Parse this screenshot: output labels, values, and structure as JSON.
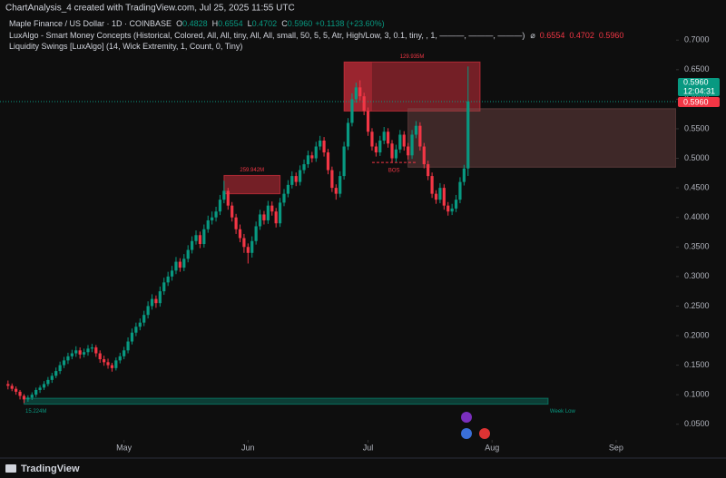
{
  "header": "ChartAnalysis_4 created with TradingView.com, Jul 25, 2025 11:55 UTC",
  "footer": "TradingView",
  "chart_data": {
    "type": "candlestick",
    "title": "Maple Finance / US Dollar · 1D · COINBASE",
    "legend_values": [
      {
        "key": "O",
        "text": "0.4828"
      },
      {
        "key": "H",
        "text": "0.6554"
      },
      {
        "key": "L",
        "text": "0.4702"
      },
      {
        "key": "C",
        "text": "0.5960"
      }
    ],
    "change": "+0.1138 (+23.60%)",
    "indicators": [
      {
        "text": "LuxAlgo - Smart Money Concepts (Historical, Colored, All, All, tiny, All, All, small, 50, 5, 5, Atr, High/Low, 3, 0.1, tiny, , 1, ———, ———, ———)",
        "symbol": "⌀",
        "values": [
          "0.6554",
          "0.4702",
          "0.5960"
        ]
      },
      {
        "text": "Liquidity Swings [LuxAlgo] (14, Wick Extremity, 1, Count, 0, Tiny)"
      }
    ],
    "up_color": "#089981",
    "down_color": "#f23645",
    "ohlc": [
      [
        0.118,
        0.124,
        0.109,
        0.115
      ],
      [
        0.115,
        0.119,
        0.106,
        0.11
      ],
      [
        0.11,
        0.114,
        0.1,
        0.105
      ],
      [
        0.105,
        0.108,
        0.092,
        0.098
      ],
      [
        0.098,
        0.101,
        0.086,
        0.092
      ],
      [
        0.092,
        0.099,
        0.088,
        0.095
      ],
      [
        0.095,
        0.104,
        0.091,
        0.1
      ],
      [
        0.1,
        0.112,
        0.096,
        0.108
      ],
      [
        0.108,
        0.116,
        0.103,
        0.112
      ],
      [
        0.112,
        0.123,
        0.108,
        0.118
      ],
      [
        0.118,
        0.13,
        0.114,
        0.125
      ],
      [
        0.125,
        0.137,
        0.12,
        0.132
      ],
      [
        0.132,
        0.146,
        0.128,
        0.14
      ],
      [
        0.14,
        0.156,
        0.135,
        0.15
      ],
      [
        0.15,
        0.164,
        0.145,
        0.158
      ],
      [
        0.158,
        0.171,
        0.152,
        0.165
      ],
      [
        0.165,
        0.176,
        0.16,
        0.17
      ],
      [
        0.17,
        0.182,
        0.164,
        0.175
      ],
      [
        0.175,
        0.18,
        0.161,
        0.168
      ],
      [
        0.168,
        0.178,
        0.163,
        0.172
      ],
      [
        0.172,
        0.184,
        0.166,
        0.178
      ],
      [
        0.178,
        0.186,
        0.172,
        0.18
      ],
      [
        0.18,
        0.184,
        0.164,
        0.17
      ],
      [
        0.17,
        0.175,
        0.154,
        0.16
      ],
      [
        0.16,
        0.166,
        0.149,
        0.155
      ],
      [
        0.155,
        0.161,
        0.144,
        0.15
      ],
      [
        0.15,
        0.154,
        0.139,
        0.145
      ],
      [
        0.145,
        0.163,
        0.141,
        0.158
      ],
      [
        0.158,
        0.171,
        0.153,
        0.165
      ],
      [
        0.165,
        0.181,
        0.16,
        0.175
      ],
      [
        0.175,
        0.197,
        0.17,
        0.19
      ],
      [
        0.19,
        0.212,
        0.185,
        0.205
      ],
      [
        0.205,
        0.222,
        0.199,
        0.215
      ],
      [
        0.215,
        0.229,
        0.209,
        0.222
      ],
      [
        0.222,
        0.242,
        0.216,
        0.235
      ],
      [
        0.235,
        0.258,
        0.229,
        0.25
      ],
      [
        0.25,
        0.27,
        0.244,
        0.262
      ],
      [
        0.262,
        0.268,
        0.247,
        0.255
      ],
      [
        0.255,
        0.283,
        0.249,
        0.275
      ],
      [
        0.275,
        0.298,
        0.269,
        0.29
      ],
      [
        0.29,
        0.308,
        0.284,
        0.3
      ],
      [
        0.3,
        0.318,
        0.293,
        0.31
      ],
      [
        0.31,
        0.333,
        0.304,
        0.325
      ],
      [
        0.325,
        0.331,
        0.308,
        0.315
      ],
      [
        0.315,
        0.338,
        0.309,
        0.33
      ],
      [
        0.33,
        0.353,
        0.324,
        0.345
      ],
      [
        0.345,
        0.368,
        0.339,
        0.36
      ],
      [
        0.36,
        0.378,
        0.354,
        0.37
      ],
      [
        0.37,
        0.376,
        0.348,
        0.355
      ],
      [
        0.355,
        0.388,
        0.349,
        0.38
      ],
      [
        0.38,
        0.403,
        0.374,
        0.395
      ],
      [
        0.395,
        0.41,
        0.388,
        0.4
      ],
      [
        0.4,
        0.418,
        0.393,
        0.41
      ],
      [
        0.41,
        0.438,
        0.404,
        0.43
      ],
      [
        0.43,
        0.462,
        0.424,
        0.445
      ],
      [
        0.445,
        0.45,
        0.413,
        0.42
      ],
      [
        0.42,
        0.426,
        0.393,
        0.4
      ],
      [
        0.4,
        0.406,
        0.372,
        0.38
      ],
      [
        0.38,
        0.388,
        0.358,
        0.365
      ],
      [
        0.365,
        0.372,
        0.34,
        0.35
      ],
      [
        0.35,
        0.356,
        0.322,
        0.34
      ],
      [
        0.34,
        0.368,
        0.332,
        0.36
      ],
      [
        0.36,
        0.393,
        0.354,
        0.385
      ],
      [
        0.385,
        0.413,
        0.379,
        0.405
      ],
      [
        0.405,
        0.411,
        0.388,
        0.395
      ],
      [
        0.395,
        0.428,
        0.389,
        0.42
      ],
      [
        0.42,
        0.427,
        0.403,
        0.41
      ],
      [
        0.41,
        0.416,
        0.383,
        0.39
      ],
      [
        0.39,
        0.433,
        0.384,
        0.425
      ],
      [
        0.425,
        0.448,
        0.419,
        0.44
      ],
      [
        0.44,
        0.463,
        0.434,
        0.455
      ],
      [
        0.455,
        0.478,
        0.449,
        0.47
      ],
      [
        0.47,
        0.476,
        0.453,
        0.46
      ],
      [
        0.46,
        0.488,
        0.454,
        0.48
      ],
      [
        0.48,
        0.498,
        0.474,
        0.49
      ],
      [
        0.49,
        0.513,
        0.484,
        0.505
      ],
      [
        0.505,
        0.511,
        0.493,
        0.5
      ],
      [
        0.5,
        0.528,
        0.494,
        0.52
      ],
      [
        0.52,
        0.538,
        0.514,
        0.53
      ],
      [
        0.53,
        0.536,
        0.503,
        0.51
      ],
      [
        0.51,
        0.516,
        0.473,
        0.48
      ],
      [
        0.48,
        0.486,
        0.443,
        0.45
      ],
      [
        0.45,
        0.456,
        0.43,
        0.44
      ],
      [
        0.44,
        0.478,
        0.434,
        0.47
      ],
      [
        0.47,
        0.528,
        0.464,
        0.52
      ],
      [
        0.52,
        0.568,
        0.514,
        0.56
      ],
      [
        0.56,
        0.61,
        0.554,
        0.6
      ],
      [
        0.6,
        0.628,
        0.594,
        0.62
      ],
      [
        0.62,
        0.632,
        0.598,
        0.605
      ],
      [
        0.605,
        0.611,
        0.573,
        0.58
      ],
      [
        0.58,
        0.586,
        0.538,
        0.545
      ],
      [
        0.545,
        0.551,
        0.513,
        0.52
      ],
      [
        0.52,
        0.526,
        0.503,
        0.51
      ],
      [
        0.51,
        0.538,
        0.504,
        0.53
      ],
      [
        0.53,
        0.553,
        0.524,
        0.545
      ],
      [
        0.545,
        0.551,
        0.518,
        0.525
      ],
      [
        0.525,
        0.531,
        0.493,
        0.5
      ],
      [
        0.5,
        0.523,
        0.494,
        0.515
      ],
      [
        0.515,
        0.548,
        0.509,
        0.54
      ],
      [
        0.54,
        0.546,
        0.513,
        0.52
      ],
      [
        0.52,
        0.526,
        0.498,
        0.505
      ],
      [
        0.505,
        0.548,
        0.499,
        0.54
      ],
      [
        0.54,
        0.563,
        0.534,
        0.555
      ],
      [
        0.555,
        0.561,
        0.513,
        0.52
      ],
      [
        0.52,
        0.526,
        0.483,
        0.49
      ],
      [
        0.49,
        0.496,
        0.463,
        0.47
      ],
      [
        0.47,
        0.476,
        0.433,
        0.44
      ],
      [
        0.44,
        0.446,
        0.423,
        0.43
      ],
      [
        0.43,
        0.458,
        0.424,
        0.45
      ],
      [
        0.45,
        0.456,
        0.413,
        0.42
      ],
      [
        0.42,
        0.426,
        0.403,
        0.41
      ],
      [
        0.41,
        0.423,
        0.404,
        0.415
      ],
      [
        0.415,
        0.438,
        0.409,
        0.43
      ],
      [
        0.43,
        0.468,
        0.424,
        0.46
      ],
      [
        0.46,
        0.489,
        0.454,
        0.4828
      ],
      [
        0.4828,
        0.6554,
        0.4702,
        0.596
      ]
    ],
    "xlim": [
      -2,
      167
    ],
    "xticks": [
      {
        "value": 29,
        "label": "May"
      },
      {
        "value": 60,
        "label": "Jun"
      },
      {
        "value": 90,
        "label": "Jul"
      },
      {
        "value": 121,
        "label": "Aug"
      },
      {
        "value": 152,
        "label": "Sep"
      }
    ],
    "ylim": [
      0.0235,
      0.7679
    ],
    "yticks": [
      {
        "value": 0.7,
        "label": "0.7000"
      },
      {
        "value": 0.65,
        "label": "0.6500"
      },
      {
        "value": 0.6,
        "label": "0.6000"
      },
      {
        "value": 0.55,
        "label": "0.5500"
      },
      {
        "value": 0.5,
        "label": "0.5000"
      },
      {
        "value": 0.45,
        "label": "0.4500"
      },
      {
        "value": 0.4,
        "label": "0.4000"
      },
      {
        "value": 0.35,
        "label": "0.3500"
      },
      {
        "value": 0.3,
        "label": "0.3000"
      },
      {
        "value": 0.25,
        "label": "0.2500"
      },
      {
        "value": 0.2,
        "label": "0.2000"
      },
      {
        "value": 0.15,
        "label": "0.1500"
      },
      {
        "value": 0.1,
        "label": "0.1000"
      },
      {
        "value": 0.05,
        "label": "0.0500"
      }
    ],
    "zones": [
      {
        "x": [
          84,
          118
        ],
        "y": [
          0.58,
          0.663
        ],
        "color": "#f23645",
        "label": "129.935M"
      },
      {
        "x": [
          54,
          68
        ],
        "y": [
          0.44,
          0.471
        ],
        "color": "#f23645",
        "label": "259.942M"
      },
      {
        "x": [
          100,
          167
        ],
        "y": [
          0.485,
          0.584
        ],
        "color": "#7a4a4a"
      },
      {
        "x": [
          4,
          135
        ],
        "y": [
          0.084,
          0.094
        ],
        "color": "#089981",
        "label": "15.224M",
        "end_label": "Week Low"
      }
    ],
    "bos": {
      "x": [
        91,
        102
      ],
      "y": 0.493,
      "label": "BOS"
    },
    "last_price": {
      "value": 0.596,
      "label": "0.5960",
      "countdown": "12:04:31"
    }
  }
}
